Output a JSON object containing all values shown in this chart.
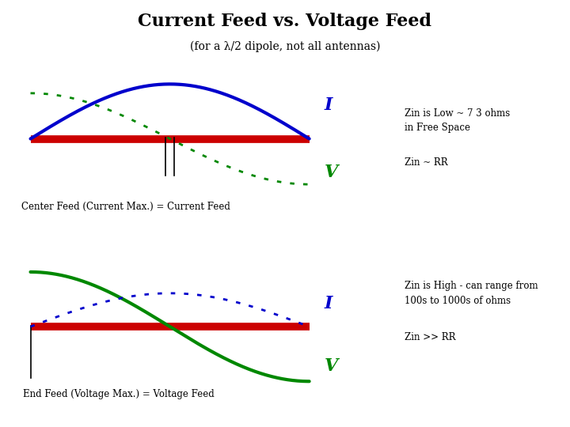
{
  "title": "Current Feed vs. Voltage Feed",
  "subtitle": "(for a λ/2 dipole, not all antennas)",
  "title_fontsize": 16,
  "subtitle_fontsize": 10,
  "background_color": "#ffffff",
  "top_panel": {
    "label_I": "I",
    "label_V": "V",
    "label_feed": "Center Feed (Current Max.) = Current Feed",
    "zin_text1": "Zin is Low ~ 7 3 ohms",
    "zin_text2": "in Free Space",
    "zin_eq": "Zin ~ RR"
  },
  "bottom_panel": {
    "label_I": "I",
    "label_V": "V",
    "label_feed": "End Feed (Voltage Max.) = Voltage Feed",
    "zin_text1": "Zin is High - can range from",
    "zin_text2": "100s to 1000s of ohms",
    "zin_eq": "Zin >> RR"
  },
  "colors": {
    "blue": "#0000cc",
    "green": "#008800",
    "red": "#cc0000",
    "black": "#000000"
  }
}
